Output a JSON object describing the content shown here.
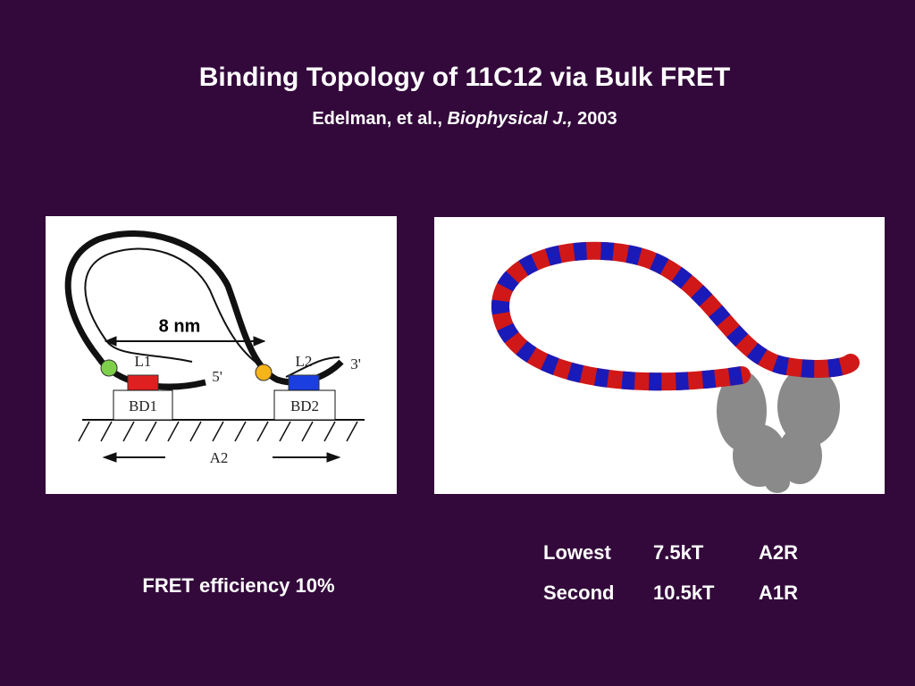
{
  "header": {
    "title": "Binding Topology of 11C12 via Bulk FRET",
    "authors": "Edelman, et al.,",
    "journal": "Biophysical J.,",
    "year": "2003"
  },
  "diagram": {
    "distance": "8 nm",
    "l1": "L1",
    "l2": "L2",
    "end5": "5'",
    "end3": "3'",
    "bd1": "BD1",
    "bd2": "BD2",
    "a2": "A2"
  },
  "fret": "FRET efficiency 10%",
  "table": {
    "rows": [
      [
        "Lowest",
        "7.5kT",
        "A2R"
      ],
      [
        "Second",
        "10.5kT",
        "A1R"
      ]
    ]
  }
}
